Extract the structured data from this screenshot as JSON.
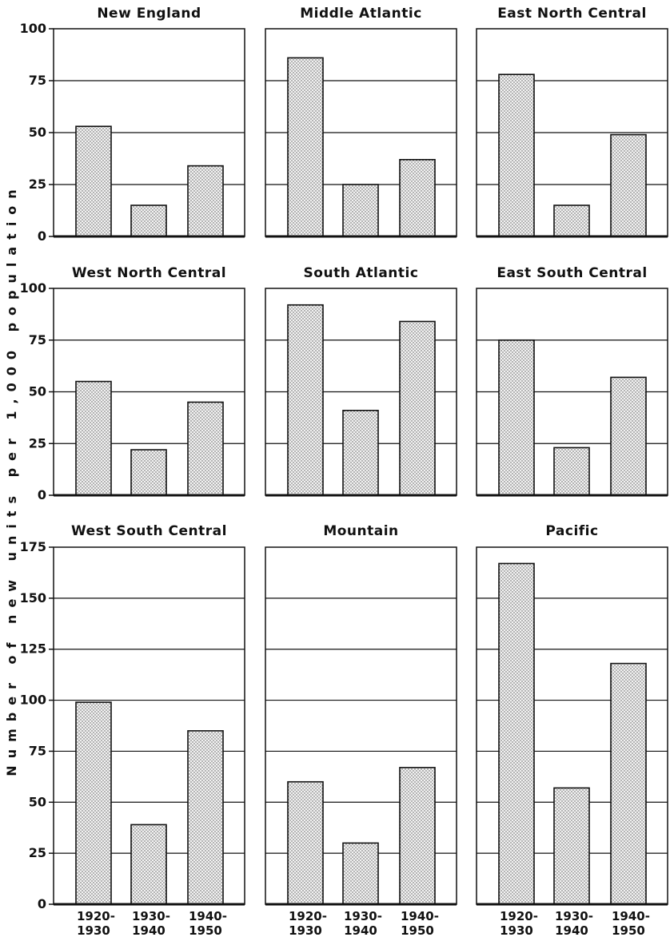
{
  "y_axis_label": "Number of new units per 1,000 population",
  "chart_data": [
    {
      "type": "bar",
      "title": "New England",
      "categories": [
        "1920-\n1930",
        "1930-\n1940",
        "1940-\n1950"
      ],
      "values": [
        53,
        15,
        34
      ],
      "ylim": [
        0,
        100
      ],
      "yticks": [
        0,
        25,
        50,
        75,
        100
      ]
    },
    {
      "type": "bar",
      "title": "Middle Atlantic",
      "categories": [
        "1920-\n1930",
        "1930-\n1940",
        "1940-\n1950"
      ],
      "values": [
        86,
        25,
        37
      ],
      "ylim": [
        0,
        100
      ],
      "yticks": [
        0,
        25,
        50,
        75,
        100
      ]
    },
    {
      "type": "bar",
      "title": "East North Central",
      "categories": [
        "1920-\n1930",
        "1930-\n1940",
        "1940-\n1950"
      ],
      "values": [
        78,
        15,
        49
      ],
      "ylim": [
        0,
        100
      ],
      "yticks": [
        0,
        25,
        50,
        75,
        100
      ]
    },
    {
      "type": "bar",
      "title": "West North Central",
      "categories": [
        "1920-\n1930",
        "1930-\n1940",
        "1940-\n1950"
      ],
      "values": [
        55,
        22,
        45
      ],
      "ylim": [
        0,
        100
      ],
      "yticks": [
        0,
        25,
        50,
        75,
        100
      ]
    },
    {
      "type": "bar",
      "title": "South Atlantic",
      "categories": [
        "1920-\n1930",
        "1930-\n1940",
        "1940-\n1950"
      ],
      "values": [
        92,
        41,
        84
      ],
      "ylim": [
        0,
        100
      ],
      "yticks": [
        0,
        25,
        50,
        75,
        100
      ]
    },
    {
      "type": "bar",
      "title": "East South Central",
      "categories": [
        "1920-\n1930",
        "1930-\n1940",
        "1940-\n1950"
      ],
      "values": [
        75,
        23,
        57
      ],
      "ylim": [
        0,
        100
      ],
      "yticks": [
        0,
        25,
        50,
        75,
        100
      ]
    },
    {
      "type": "bar",
      "title": "West South Central",
      "categories": [
        "1920-\n1930",
        "1930-\n1940",
        "1940-\n1950"
      ],
      "values": [
        99,
        39,
        85
      ],
      "ylim": [
        0,
        175
      ],
      "yticks": [
        0,
        25,
        50,
        75,
        100,
        125,
        150,
        175
      ]
    },
    {
      "type": "bar",
      "title": "Mountain",
      "categories": [
        "1920-\n1930",
        "1930-\n1940",
        "1940-\n1950"
      ],
      "values": [
        60,
        30,
        67
      ],
      "ylim": [
        0,
        175
      ],
      "yticks": [
        0,
        25,
        50,
        75,
        100,
        125,
        150,
        175
      ]
    },
    {
      "type": "bar",
      "title": "Pacific",
      "categories": [
        "1920-\n1930",
        "1930-\n1940",
        "1940-\n1950"
      ],
      "values": [
        167,
        57,
        118
      ],
      "ylim": [
        0,
        175
      ],
      "yticks": [
        0,
        25,
        50,
        75,
        100,
        125,
        150,
        175
      ]
    }
  ],
  "style": {
    "bar_fill": "#e6e6e6",
    "line_color": "#111111"
  }
}
